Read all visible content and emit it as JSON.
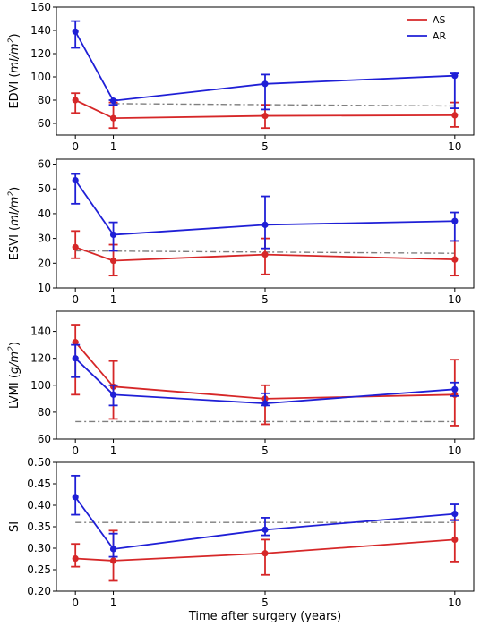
{
  "colors": {
    "AS": "#d62728",
    "AR": "#1f1fd6",
    "reference": "#7f7f7f"
  },
  "xlabel": "Time after surgery (years)",
  "legend": {
    "position": "top-right",
    "entries": [
      "AS",
      "AR"
    ]
  },
  "chart_data": [
    {
      "type": "line",
      "panel": "EDVI",
      "ylabel": "EDVI (ml/m²)",
      "ylabel_parts": {
        "main": "EDVI (",
        "italic": "ml/m",
        "sup": "2",
        "close": ")"
      },
      "x": [
        0,
        1,
        5,
        10
      ],
      "x_ticks": [
        "0",
        "1",
        "5",
        "10"
      ],
      "ylim": [
        50,
        160
      ],
      "y_ticks": [
        "60",
        "80",
        "100",
        "120",
        "140",
        "160"
      ],
      "series": [
        {
          "name": "AS",
          "values": [
            80,
            64.5,
            66.5,
            67
          ],
          "err_low": [
            69,
            56,
            56,
            57
          ],
          "err_high": [
            86,
            78,
            76,
            78
          ]
        },
        {
          "name": "AR",
          "values": [
            139,
            79.5,
            94,
            101
          ],
          "err_low": [
            125,
            76,
            72,
            73
          ],
          "err_high": [
            148,
            80,
            102,
            103
          ]
        }
      ],
      "reference_line": {
        "x": [
          1,
          10
        ],
        "values": [
          77,
          75
        ]
      }
    },
    {
      "type": "line",
      "panel": "ESVI",
      "ylabel": "ESVI (ml/m²)",
      "ylabel_parts": {
        "main": "ESVI (",
        "italic": "ml/m",
        "sup": "2",
        "close": ")"
      },
      "x": [
        0,
        1,
        5,
        10
      ],
      "x_ticks": [
        "0",
        "1",
        "5",
        "10"
      ],
      "ylim": [
        10,
        62
      ],
      "y_ticks": [
        "10",
        "20",
        "30",
        "40",
        "50",
        "60"
      ],
      "series": [
        {
          "name": "AS",
          "values": [
            26.5,
            21,
            23.5,
            21.5
          ],
          "err_low": [
            22,
            15,
            15.5,
            15
          ],
          "err_high": [
            33,
            27.5,
            30,
            29
          ]
        },
        {
          "name": "AR",
          "values": [
            53.5,
            31.5,
            35.5,
            37
          ],
          "err_low": [
            44,
            25,
            26,
            29
          ],
          "err_high": [
            56,
            36.5,
            47,
            40.5
          ]
        }
      ],
      "reference_line": {
        "x": [
          0,
          10
        ],
        "values": [
          25,
          24
        ]
      }
    },
    {
      "type": "line",
      "panel": "LVMI",
      "ylabel": "LVMI (g/m²)",
      "ylabel_parts": {
        "main": "LVMI (",
        "italic": "g/m",
        "sup": "2",
        "close": ")"
      },
      "x": [
        0,
        1,
        5,
        10
      ],
      "x_ticks": [
        "0",
        "1",
        "5",
        "10"
      ],
      "ylim": [
        60,
        155
      ],
      "y_ticks": [
        "60",
        "80",
        "100",
        "120",
        "140"
      ],
      "series": [
        {
          "name": "AS",
          "values": [
            132,
            99,
            90,
            93
          ],
          "err_low": [
            93,
            75,
            71,
            70
          ],
          "err_high": [
            145,
            118,
            100,
            119
          ]
        },
        {
          "name": "AR",
          "values": [
            120,
            93,
            86.5,
            97
          ],
          "err_low": [
            106,
            85,
            85,
            92
          ],
          "err_high": [
            130,
            100,
            94,
            102
          ]
        }
      ],
      "reference_line": {
        "x": [
          0,
          10
        ],
        "values": [
          73,
          73
        ]
      }
    },
    {
      "type": "line",
      "panel": "SI",
      "ylabel": "SI",
      "ylabel_parts": {
        "main": "SI",
        "italic": "",
        "sup": "",
        "close": ""
      },
      "x": [
        0,
        1,
        5,
        10
      ],
      "x_ticks": [
        "0",
        "1",
        "5",
        "10"
      ],
      "ylim": [
        0.2,
        0.5
      ],
      "y_ticks": [
        "0.20",
        "0.25",
        "0.30",
        "0.35",
        "0.40",
        "0.45",
        "0.50"
      ],
      "series": [
        {
          "name": "AS",
          "values": [
            0.276,
            0.271,
            0.288,
            0.32
          ],
          "err_low": [
            0.257,
            0.224,
            0.238,
            0.269
          ],
          "err_high": [
            0.31,
            0.341,
            0.32,
            0.366
          ]
        },
        {
          "name": "AR",
          "values": [
            0.419,
            0.298,
            0.343,
            0.38
          ],
          "err_low": [
            0.378,
            0.28,
            0.33,
            0.365
          ],
          "err_high": [
            0.469,
            0.334,
            0.371,
            0.402
          ]
        }
      ],
      "reference_line": {
        "x": [
          0,
          10
        ],
        "values": [
          0.36,
          0.36
        ]
      }
    }
  ]
}
